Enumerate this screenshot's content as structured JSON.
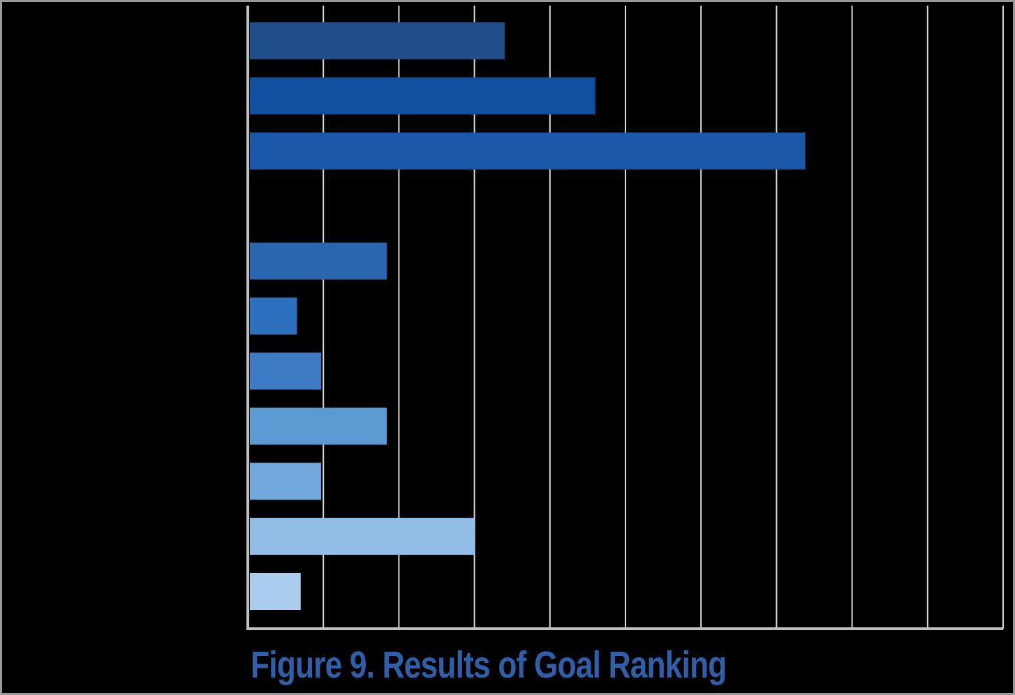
{
  "caption": "Figure 9. Results of Goal Ranking",
  "colors": {
    "background": "#000000",
    "frame": "#9a9a9a",
    "gridline": "#d9d9d9",
    "axis": "#bfbfbf",
    "caption": "#2f5fa8"
  },
  "chart_data": {
    "type": "bar",
    "orientation": "horizontal",
    "categories": [
      "",
      "",
      "",
      "",
      "",
      "",
      "",
      "",
      "",
      "",
      ""
    ],
    "values": [
      3.4,
      4.6,
      7.38,
      null,
      1.84,
      0.65,
      0.97,
      1.84,
      0.97,
      3.0,
      0.7
    ],
    "bar_colors": [
      "#1f4e8a",
      "#0f4f9e",
      "#1c58a8",
      "#2a5ea8",
      "#2a66b0",
      "#2d70bd",
      "#3d7cc4",
      "#5b9ad3",
      "#72a9dc",
      "#92bde6",
      "#aacdee"
    ],
    "xlim": [
      0,
      10
    ],
    "grid": true,
    "legend": "none",
    "title": "",
    "xlabel": "",
    "ylabel": ""
  }
}
